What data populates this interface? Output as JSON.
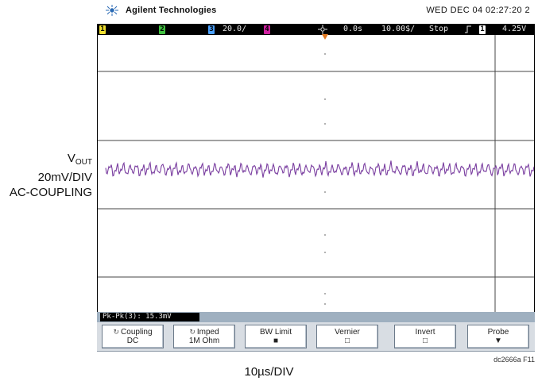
{
  "brand": {
    "name": "Agilent Technologies",
    "datetime": "WED DEC 04 02:27:20 2"
  },
  "status": {
    "ch1": "1",
    "ch2": "2",
    "ch3": "3",
    "ch3_scale": "20.0/",
    "ch4": "4",
    "delay": "0.0s",
    "timebase": "10.00$/",
    "mode": "Stop",
    "trig_ch": "1",
    "trig_level": "4.25V",
    "colors": {
      "ch1": "#f0e030",
      "ch2": "#40c040",
      "ch3": "#4aa0ff",
      "ch4": "#d020a0"
    }
  },
  "channel_label": {
    "line1_main": "V",
    "line1_sub": "OUT",
    "line2": "20mV/DIV",
    "line3": "AC-COUPLING"
  },
  "measurement": {
    "text": "Pk-Pk(3): 15.3mV"
  },
  "softkeys": [
    {
      "icon": "rotate-icon",
      "line1": "Coupling",
      "line2": "DC"
    },
    {
      "icon": "rotate-icon",
      "line1": "Imped",
      "line2": "1M Ohm"
    },
    {
      "line1": "BW Limit",
      "line2": "■"
    },
    {
      "line1": "Vernier",
      "line2": "□"
    },
    {
      "line1": "Invert",
      "line2": "□"
    },
    {
      "line1": "Probe",
      "line2": "▼"
    }
  ],
  "timebase_label": "10µs/DIV",
  "figure_ref": "dc2666a F11",
  "trace": {
    "color": "#7a3ea0"
  }
}
